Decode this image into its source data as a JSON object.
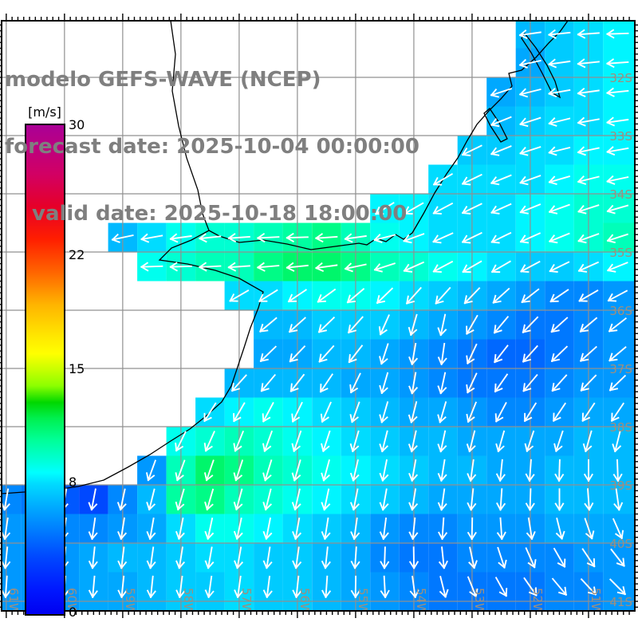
{
  "header": {
    "line1": "modelo GEFS-WAVE (NCEP)",
    "line2": "forecast date: 2025-10-04 00:00:00",
    "line3": "valid date: 2025-10-18 18:00:00",
    "text_color": "#7f7f7f"
  },
  "colorbar": {
    "unit_label": "[m/s]",
    "min": 0,
    "max": 30,
    "ticks": [
      {
        "value": 30,
        "label": "30"
      },
      {
        "value": 22,
        "label": "22"
      },
      {
        "value": 15,
        "label": "15"
      },
      {
        "value": 8,
        "label": "8"
      },
      {
        "value": 0,
        "label": "0"
      }
    ],
    "stops": [
      [
        0,
        "#0000f0"
      ],
      [
        1.5,
        "#0018ff"
      ],
      [
        3.5,
        "#0048ff"
      ],
      [
        5,
        "#0078ff"
      ],
      [
        6.5,
        "#00a8ff"
      ],
      [
        8,
        "#00dcff"
      ],
      [
        8.7,
        "#00ffff"
      ],
      [
        9.5,
        "#00ffd2"
      ],
      [
        10.7,
        "#00ff96"
      ],
      [
        12,
        "#00f050"
      ],
      [
        13,
        "#00d800"
      ],
      [
        14,
        "#8cff00"
      ],
      [
        15,
        "#c8ff00"
      ],
      [
        16,
        "#ffff00"
      ],
      [
        17,
        "#ffe800"
      ],
      [
        19,
        "#ffb400"
      ],
      [
        21,
        "#ff6400"
      ],
      [
        23,
        "#ff1e00"
      ],
      [
        25,
        "#e60028"
      ],
      [
        27,
        "#d20064"
      ],
      [
        30,
        "#aa0096"
      ]
    ]
  },
  "map": {
    "lon_min": -61.08,
    "lon_max": -50.205,
    "lat_max": -31.027,
    "lat_min": -41.164,
    "gridline_color": "#909090",
    "geo_label_color": "#9e8f7e",
    "border_color": "#000000",
    "lon_gridlines": [
      {
        "lon": -61,
        "label": "61W"
      },
      {
        "lon": -60,
        "label": "60W"
      },
      {
        "lon": -59,
        "label": "59W"
      },
      {
        "lon": -58,
        "label": "58W"
      },
      {
        "lon": -57,
        "label": "57W"
      },
      {
        "lon": -56,
        "label": "56W"
      },
      {
        "lon": -55,
        "label": "55W"
      },
      {
        "lon": -54,
        "label": "54W"
      },
      {
        "lon": -53,
        "label": "53W"
      },
      {
        "lon": -52,
        "label": "52W"
      },
      {
        "lon": -51,
        "label": "51W"
      }
    ],
    "lat_gridlines": [
      {
        "lat": -32,
        "label": "32S"
      },
      {
        "lat": -33,
        "label": "33S"
      },
      {
        "lat": -34,
        "label": "34S"
      },
      {
        "lat": -35,
        "label": "35S"
      },
      {
        "lat": -36,
        "label": "36S"
      },
      {
        "lat": -37,
        "label": "37S"
      },
      {
        "lat": -38,
        "label": "38S"
      },
      {
        "lat": -39,
        "label": "39S"
      },
      {
        "lat": -40,
        "label": "40S"
      },
      {
        "lat": -41,
        "label": "41S"
      }
    ],
    "coastline_paths": [
      "M710,0 L700,14 L686,28 L670,46 L652,62 L636,66 L640,82 L626,98 L612,112 L596,130 L584,150 L572,172 L558,192 L543,216 L529,242 L515,266 L504,274 L494,268 L482,277 L470,273 L458,281 L448,279 L418,283 L388,287 L358,280 L328,275 L298,278 L273,270 L260,263 L238,275 L213,285 L198,300 L233,305 L268,313 L298,323 L328,340 L322,360 L312,385 L304,410 L296,434 L288,458 L276,478 L256,496 L236,512 L212,527 L186,544 L158,560 L128,576 L96,584 L62,589 L28,591 L0,593",
      "M212,0 L218,42 L214,88 L222,132 L232,172 L246,212 L252,242 L260,263",
      "M656,16 L670,34 L684,56 L694,76 L700,96 L690,90 L678,66 L664,40 L652,22 Z",
      "M612,110 L624,128 L634,148 L626,152 L613,132 L605,116 Z"
    ]
  },
  "chart_data": {
    "type": "heatmap",
    "title": "modelo GEFS-WAVE (NCEP)",
    "units": "m/s",
    "legend_position": "left",
    "grid": true,
    "arrow_color": "#ffffff",
    "lon_centers": [
      -61.0,
      -60.5,
      -60.0,
      -59.5,
      -59.0,
      -58.5,
      -58.0,
      -57.5,
      -57.0,
      -56.5,
      -56.0,
      -55.5,
      -55.0,
      -54.5,
      -54.0,
      -53.5,
      -53.0,
      -52.5,
      -52.0,
      -51.5,
      -51.0,
      -50.5
    ],
    "lat_centers": [
      -31.25,
      -31.75,
      -32.25,
      -32.75,
      -33.25,
      -33.75,
      -34.25,
      -34.75,
      -35.25,
      -35.75,
      -36.25,
      -36.75,
      -37.25,
      -37.75,
      -38.25,
      -38.75,
      -39.25,
      -39.75,
      -40.25,
      -40.75
    ],
    "values": [
      [
        null,
        null,
        null,
        null,
        null,
        null,
        null,
        null,
        null,
        null,
        null,
        null,
        null,
        null,
        null,
        null,
        null,
        null,
        7,
        7.5,
        8,
        8.5
      ],
      [
        null,
        null,
        null,
        null,
        null,
        null,
        null,
        null,
        null,
        null,
        null,
        null,
        null,
        null,
        null,
        null,
        null,
        null,
        6.5,
        7.5,
        8,
        8.5
      ],
      [
        null,
        null,
        null,
        null,
        null,
        null,
        null,
        null,
        null,
        null,
        null,
        null,
        null,
        null,
        null,
        null,
        null,
        6.5,
        7,
        7.5,
        8,
        8.5
      ],
      [
        null,
        null,
        null,
        null,
        null,
        null,
        null,
        null,
        null,
        null,
        null,
        null,
        null,
        null,
        null,
        null,
        null,
        7,
        7.5,
        8,
        8,
        8.5
      ],
      [
        null,
        null,
        null,
        null,
        null,
        null,
        null,
        null,
        null,
        null,
        null,
        null,
        null,
        null,
        null,
        null,
        7.5,
        7.5,
        8,
        8,
        8.5,
        8.5
      ],
      [
        null,
        null,
        null,
        null,
        null,
        null,
        null,
        null,
        null,
        null,
        null,
        null,
        null,
        null,
        null,
        8,
        8,
        8,
        8,
        8.5,
        9,
        9
      ],
      [
        null,
        null,
        null,
        null,
        null,
        null,
        null,
        null,
        null,
        null,
        null,
        null,
        null,
        8.5,
        8.5,
        8,
        8,
        8,
        8.5,
        9,
        9.5,
        9.5
      ],
      [
        null,
        null,
        null,
        null,
        7,
        8,
        9,
        9.5,
        9.5,
        10,
        10.5,
        11,
        10,
        9,
        8.5,
        8,
        8,
        8,
        8.5,
        9,
        9.5,
        10
      ],
      [
        null,
        null,
        null,
        null,
        null,
        9,
        9.5,
        10,
        10,
        11,
        11.5,
        11.5,
        11,
        10,
        9.5,
        9,
        8.5,
        8,
        7.5,
        7.5,
        8,
        8.5
      ],
      [
        null,
        null,
        null,
        null,
        null,
        null,
        null,
        null,
        8,
        8,
        8.5,
        9,
        9,
        8.5,
        8,
        7.5,
        7,
        6.5,
        6,
        5.5,
        5.5,
        6
      ],
      [
        null,
        null,
        null,
        null,
        null,
        null,
        null,
        null,
        null,
        7,
        7,
        7.5,
        7.5,
        7.5,
        7,
        6.5,
        6,
        5.5,
        5,
        5,
        5.5,
        6
      ],
      [
        null,
        null,
        null,
        null,
        null,
        null,
        null,
        null,
        null,
        6.5,
        6.5,
        7,
        7,
        6.5,
        6,
        5.5,
        5,
        4.5,
        4.5,
        5,
        5.5,
        6
      ],
      [
        null,
        null,
        null,
        null,
        null,
        null,
        null,
        null,
        7,
        7,
        7,
        7,
        6.5,
        6.5,
        6,
        5.5,
        5,
        5,
        5,
        5.5,
        6,
        6
      ],
      [
        null,
        null,
        null,
        null,
        null,
        null,
        null,
        8,
        8.5,
        9,
        8.5,
        8,
        7.5,
        7,
        6.5,
        6.5,
        6,
        5.5,
        5.5,
        6,
        6.5,
        6.5
      ],
      [
        null,
        null,
        null,
        null,
        null,
        null,
        9,
        9.5,
        10,
        9.5,
        9,
        8.5,
        8,
        7.5,
        7,
        7,
        6.5,
        6.5,
        6.5,
        6.5,
        7,
        7
      ],
      [
        null,
        null,
        null,
        null,
        null,
        6,
        10,
        11.5,
        11,
        10,
        9.5,
        9,
        8.5,
        8,
        7.5,
        7,
        7,
        6.5,
        6.5,
        7,
        7,
        7
      ],
      [
        5.5,
        5,
        4,
        3.5,
        5.5,
        7,
        10.5,
        11,
        10,
        9.5,
        9,
        8.5,
        8,
        7.5,
        7,
        6.5,
        6.5,
        6.5,
        6.5,
        7,
        7,
        7
      ],
      [
        6,
        6,
        5.5,
        5.5,
        6,
        6.5,
        8,
        9,
        9,
        8.5,
        8,
        7.5,
        7,
        6,
        5.5,
        5.5,
        6,
        6,
        6,
        6.5,
        6.5,
        6.5
      ],
      [
        6,
        6,
        6,
        6.5,
        7,
        7,
        7.5,
        8,
        8,
        7.5,
        7.5,
        7,
        6.5,
        5.5,
        5,
        5,
        5.5,
        5.5,
        5.5,
        5.5,
        6,
        6
      ],
      [
        6,
        6,
        6,
        6.5,
        6.5,
        7,
        7.5,
        7.5,
        8,
        7.5,
        7.5,
        7,
        6.5,
        6,
        5.5,
        5,
        5,
        5,
        5,
        5.5,
        5.5,
        6
      ]
    ],
    "directions_deg": [
      [
        null,
        null,
        null,
        null,
        null,
        null,
        null,
        null,
        null,
        null,
        null,
        null,
        null,
        null,
        null,
        null,
        null,
        null,
        262,
        264,
        266,
        268
      ],
      [
        null,
        null,
        null,
        null,
        null,
        null,
        null,
        null,
        null,
        null,
        null,
        null,
        null,
        null,
        null,
        null,
        null,
        null,
        258,
        262,
        264,
        266
      ],
      [
        null,
        null,
        null,
        null,
        null,
        null,
        null,
        null,
        null,
        null,
        null,
        null,
        null,
        null,
        null,
        null,
        null,
        252,
        256,
        260,
        262,
        264
      ],
      [
        null,
        null,
        null,
        null,
        null,
        null,
        null,
        null,
        null,
        null,
        null,
        null,
        null,
        null,
        null,
        null,
        null,
        248,
        252,
        256,
        260,
        262
      ],
      [
        null,
        null,
        null,
        null,
        null,
        null,
        null,
        null,
        null,
        null,
        null,
        null,
        null,
        null,
        null,
        null,
        244,
        248,
        252,
        256,
        258,
        260
      ],
      [
        null,
        null,
        null,
        null,
        null,
        null,
        null,
        null,
        null,
        null,
        null,
        null,
        null,
        null,
        null,
        240,
        244,
        248,
        250,
        254,
        256,
        258
      ],
      [
        null,
        null,
        null,
        null,
        null,
        null,
        null,
        null,
        null,
        null,
        null,
        null,
        null,
        238,
        240,
        242,
        244,
        246,
        248,
        250,
        252,
        254
      ],
      [
        null,
        null,
        null,
        null,
        258,
        260,
        262,
        264,
        266,
        267,
        268,
        266,
        262,
        256,
        250,
        246,
        244,
        244,
        246,
        248,
        250,
        252
      ],
      [
        null,
        null,
        null,
        null,
        null,
        268,
        268,
        267,
        266,
        265,
        264,
        262,
        258,
        252,
        246,
        242,
        240,
        240,
        242,
        244,
        246,
        248
      ],
      [
        null,
        null,
        null,
        null,
        null,
        null,
        null,
        null,
        240,
        238,
        236,
        234,
        230,
        226,
        222,
        222,
        224,
        228,
        232,
        236,
        240,
        242
      ],
      [
        null,
        null,
        null,
        null,
        null,
        null,
        null,
        null,
        null,
        230,
        228,
        226,
        222,
        204,
        196,
        192,
        210,
        220,
        224,
        228,
        230,
        232
      ],
      [
        null,
        null,
        null,
        null,
        null,
        null,
        null,
        null,
        null,
        226,
        224,
        222,
        218,
        198,
        190,
        188,
        205,
        218,
        222,
        226,
        228,
        230
      ],
      [
        null,
        null,
        null,
        null,
        null,
        null,
        null,
        null,
        222,
        220,
        218,
        214,
        206,
        196,
        190,
        192,
        205,
        215,
        220,
        222,
        224,
        226
      ],
      [
        null,
        null,
        null,
        null,
        null,
        null,
        null,
        212,
        210,
        208,
        206,
        204,
        200,
        196,
        194,
        196,
        202,
        208,
        212,
        214,
        214,
        214
      ],
      [
        null,
        null,
        null,
        null,
        null,
        null,
        206,
        204,
        202,
        200,
        199,
        198,
        196,
        194,
        192,
        192,
        194,
        196,
        198,
        198,
        196,
        194
      ],
      [
        null,
        null,
        null,
        null,
        null,
        200,
        200,
        199,
        198,
        197,
        196,
        195,
        193,
        191,
        190,
        189,
        188,
        186,
        184,
        182,
        180,
        178
      ],
      [
        190,
        190,
        190,
        191,
        192,
        194,
        196,
        196,
        195,
        194,
        193,
        192,
        191,
        190,
        189,
        188,
        186,
        184,
        182,
        180,
        176,
        172
      ],
      [
        188,
        188,
        188,
        188,
        189,
        190,
        191,
        192,
        192,
        191,
        190,
        189,
        188,
        187,
        186,
        184,
        181,
        176,
        171,
        166,
        161,
        156
      ],
      [
        186,
        186,
        186,
        186,
        187,
        188,
        189,
        190,
        190,
        189,
        188,
        186,
        184,
        182,
        179,
        174,
        168,
        162,
        156,
        150,
        146,
        142
      ],
      [
        184,
        184,
        185,
        185,
        186,
        186,
        187,
        188,
        188,
        187,
        186,
        184,
        181,
        177,
        172,
        166,
        158,
        151,
        145,
        140,
        137,
        135
      ]
    ]
  }
}
